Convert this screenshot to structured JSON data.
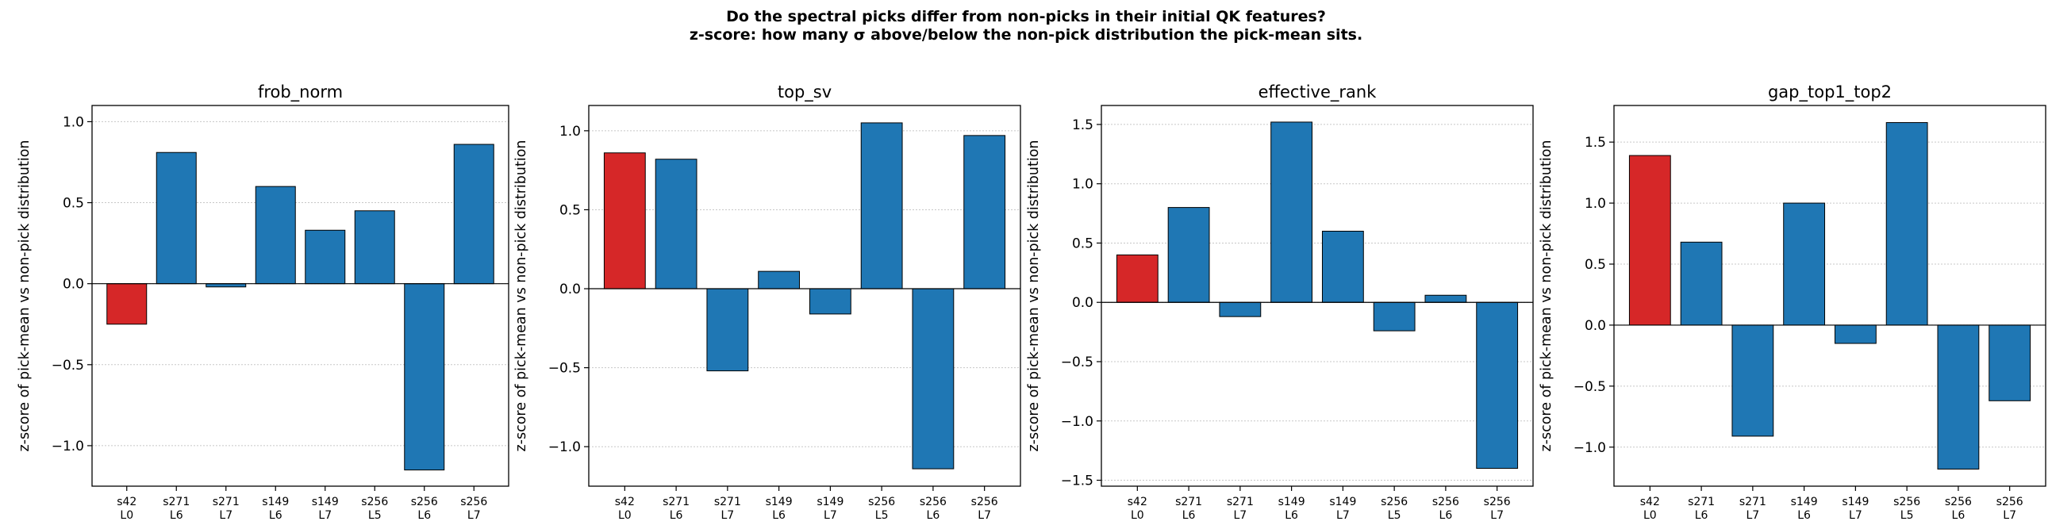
{
  "figure": {
    "title_line1": "Do the spectral picks differ from non-picks in their initial QK features?",
    "title_line2": "z-score: how many σ above/below the non-pick distribution the pick-mean sits."
  },
  "colors": {
    "highlight": "#d62728",
    "bar": "#1f77b4",
    "edge": "#000000",
    "grid": "#b0b0b0"
  },
  "chart_data": [
    {
      "type": "bar",
      "title": "frob_norm",
      "ylabel": "z-score of pick-mean vs non-pick distribution",
      "categories": [
        [
          "s42",
          "L0"
        ],
        [
          "s271",
          "L6"
        ],
        [
          "s271",
          "L7"
        ],
        [
          "s149",
          "L6"
        ],
        [
          "s149",
          "L7"
        ],
        [
          "s256",
          "L5"
        ],
        [
          "s256",
          "L6"
        ],
        [
          "s256",
          "L7"
        ]
      ],
      "values": [
        -0.25,
        0.81,
        -0.02,
        0.6,
        0.33,
        0.45,
        -1.15,
        0.86
      ],
      "highlight_index": 0,
      "ylim": [
        -1.25,
        1.1
      ],
      "yticks": [
        -1.0,
        -0.5,
        0.0,
        0.5,
        1.0
      ],
      "ytick_labels": [
        "−1.0",
        "−0.5",
        "0.0",
        "0.5",
        "1.0"
      ],
      "grid": "y-dotted"
    },
    {
      "type": "bar",
      "title": "top_sv",
      "ylabel": "z-score of pick-mean vs non-pick distribution",
      "categories": [
        [
          "s42",
          "L0"
        ],
        [
          "s271",
          "L6"
        ],
        [
          "s271",
          "L7"
        ],
        [
          "s149",
          "L6"
        ],
        [
          "s149",
          "L7"
        ],
        [
          "s256",
          "L5"
        ],
        [
          "s256",
          "L6"
        ],
        [
          "s256",
          "L7"
        ]
      ],
      "values": [
        0.86,
        0.82,
        -0.52,
        0.11,
        -0.16,
        1.05,
        -1.14,
        0.97
      ],
      "highlight_index": 0,
      "ylim": [
        -1.25,
        1.16
      ],
      "yticks": [
        -1.0,
        -0.5,
        0.0,
        0.5,
        1.0
      ],
      "ytick_labels": [
        "−1.0",
        "−0.5",
        "0.0",
        "0.5",
        "1.0"
      ],
      "grid": "y-dotted"
    },
    {
      "type": "bar",
      "title": "effective_rank",
      "ylabel": "z-score of pick-mean vs non-pick distribution",
      "categories": [
        [
          "s42",
          "L0"
        ],
        [
          "s271",
          "L6"
        ],
        [
          "s271",
          "L7"
        ],
        [
          "s149",
          "L6"
        ],
        [
          "s149",
          "L7"
        ],
        [
          "s256",
          "L5"
        ],
        [
          "s256",
          "L6"
        ],
        [
          "s256",
          "L7"
        ]
      ],
      "values": [
        0.4,
        0.8,
        -0.12,
        1.52,
        0.6,
        -0.24,
        0.06,
        -1.4
      ],
      "highlight_index": 0,
      "ylim": [
        -1.55,
        1.66
      ],
      "yticks": [
        -1.5,
        -1.0,
        -0.5,
        0.0,
        0.5,
        1.0,
        1.5
      ],
      "ytick_labels": [
        "−1.5",
        "−1.0",
        "−0.5",
        "0.0",
        "0.5",
        "1.0",
        "1.5"
      ],
      "grid": "y-dotted"
    },
    {
      "type": "bar",
      "title": "gap_top1_top2",
      "ylabel": "z-score of pick-mean vs non-pick distribution",
      "categories": [
        [
          "s42",
          "L0"
        ],
        [
          "s271",
          "L6"
        ],
        [
          "s271",
          "L7"
        ],
        [
          "s149",
          "L6"
        ],
        [
          "s149",
          "L7"
        ],
        [
          "s256",
          "L5"
        ],
        [
          "s256",
          "L6"
        ],
        [
          "s256",
          "L7"
        ]
      ],
      "values": [
        1.39,
        0.68,
        -0.91,
        1.0,
        -0.15,
        1.66,
        -1.18,
        -0.62
      ],
      "highlight_index": 0,
      "ylim": [
        -1.32,
        1.8
      ],
      "yticks": [
        -1.0,
        -0.5,
        0.0,
        0.5,
        1.0,
        1.5
      ],
      "ytick_labels": [
        "−1.0",
        "−0.5",
        "0.0",
        "0.5",
        "1.0",
        "1.5"
      ],
      "grid": "y-dotted"
    }
  ]
}
